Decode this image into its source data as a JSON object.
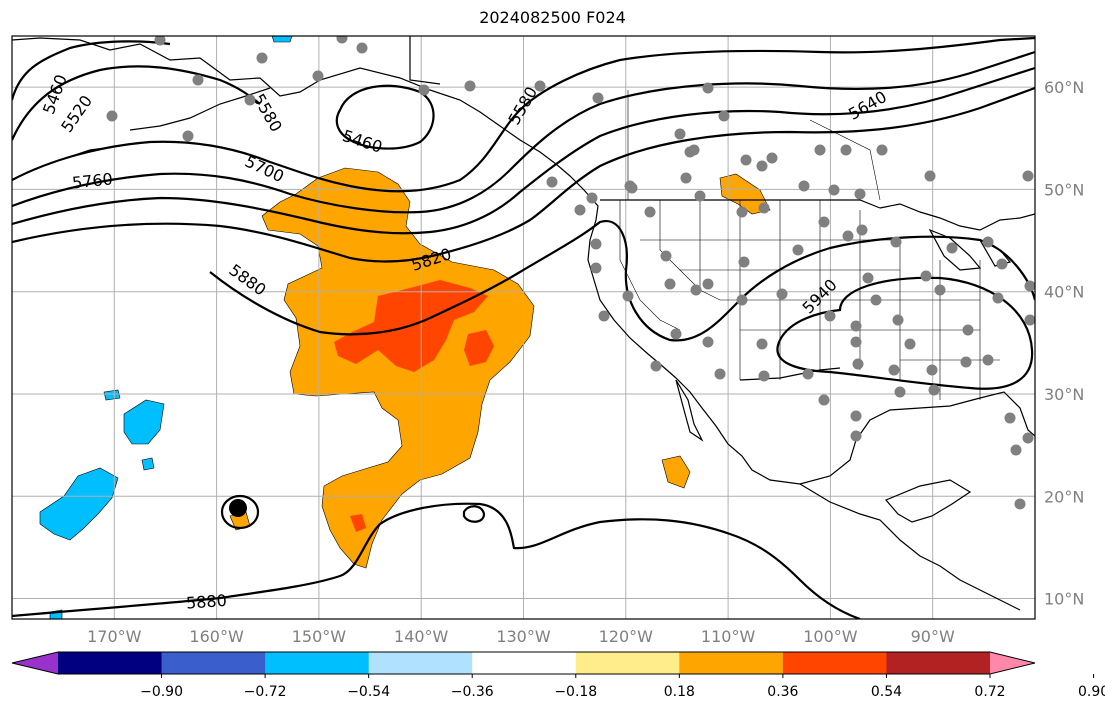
{
  "title": "2024082500 F024",
  "map": {
    "lat_range": [
      8,
      65
    ],
    "lon_range": [
      -180,
      -80
    ],
    "lat_ticks": [
      {
        "value": 10,
        "label": "10°N"
      },
      {
        "value": 20,
        "label": "20°N"
      },
      {
        "value": 30,
        "label": "30°N"
      },
      {
        "value": 40,
        "label": "40°N"
      },
      {
        "value": 50,
        "label": "50°N"
      },
      {
        "value": 60,
        "label": "60°N"
      }
    ],
    "lon_ticks": [
      {
        "value": -170,
        "label": "170°W"
      },
      {
        "value": -160,
        "label": "160°W"
      },
      {
        "value": -150,
        "label": "150°W"
      },
      {
        "value": -140,
        "label": "140°W"
      },
      {
        "value": -130,
        "label": "130°W"
      },
      {
        "value": -120,
        "label": "120°W"
      },
      {
        "value": -110,
        "label": "110°W"
      },
      {
        "value": -100,
        "label": "100°W"
      },
      {
        "value": -90,
        "label": "90°W"
      }
    ],
    "contour_labels": [
      "5460",
      "5520",
      "5580",
      "5460",
      "5580",
      "5640",
      "5760",
      "5700",
      "5820",
      "5880",
      "5940",
      "5880"
    ]
  },
  "colorbar": {
    "colors": [
      "#9932CC",
      "#000080",
      "#3A5FCD",
      "#00BFFF",
      "#B0E2FF",
      "#FFFFFF",
      "#FFEC8B",
      "#FFA500",
      "#FF4500",
      "#B22222",
      "#FF88AA"
    ],
    "ticks": [
      "−0.90",
      "−0.72",
      "−0.54",
      "−0.36",
      "−0.18",
      "0.18",
      "0.36",
      "0.54",
      "0.72",
      "0.90"
    ]
  }
}
